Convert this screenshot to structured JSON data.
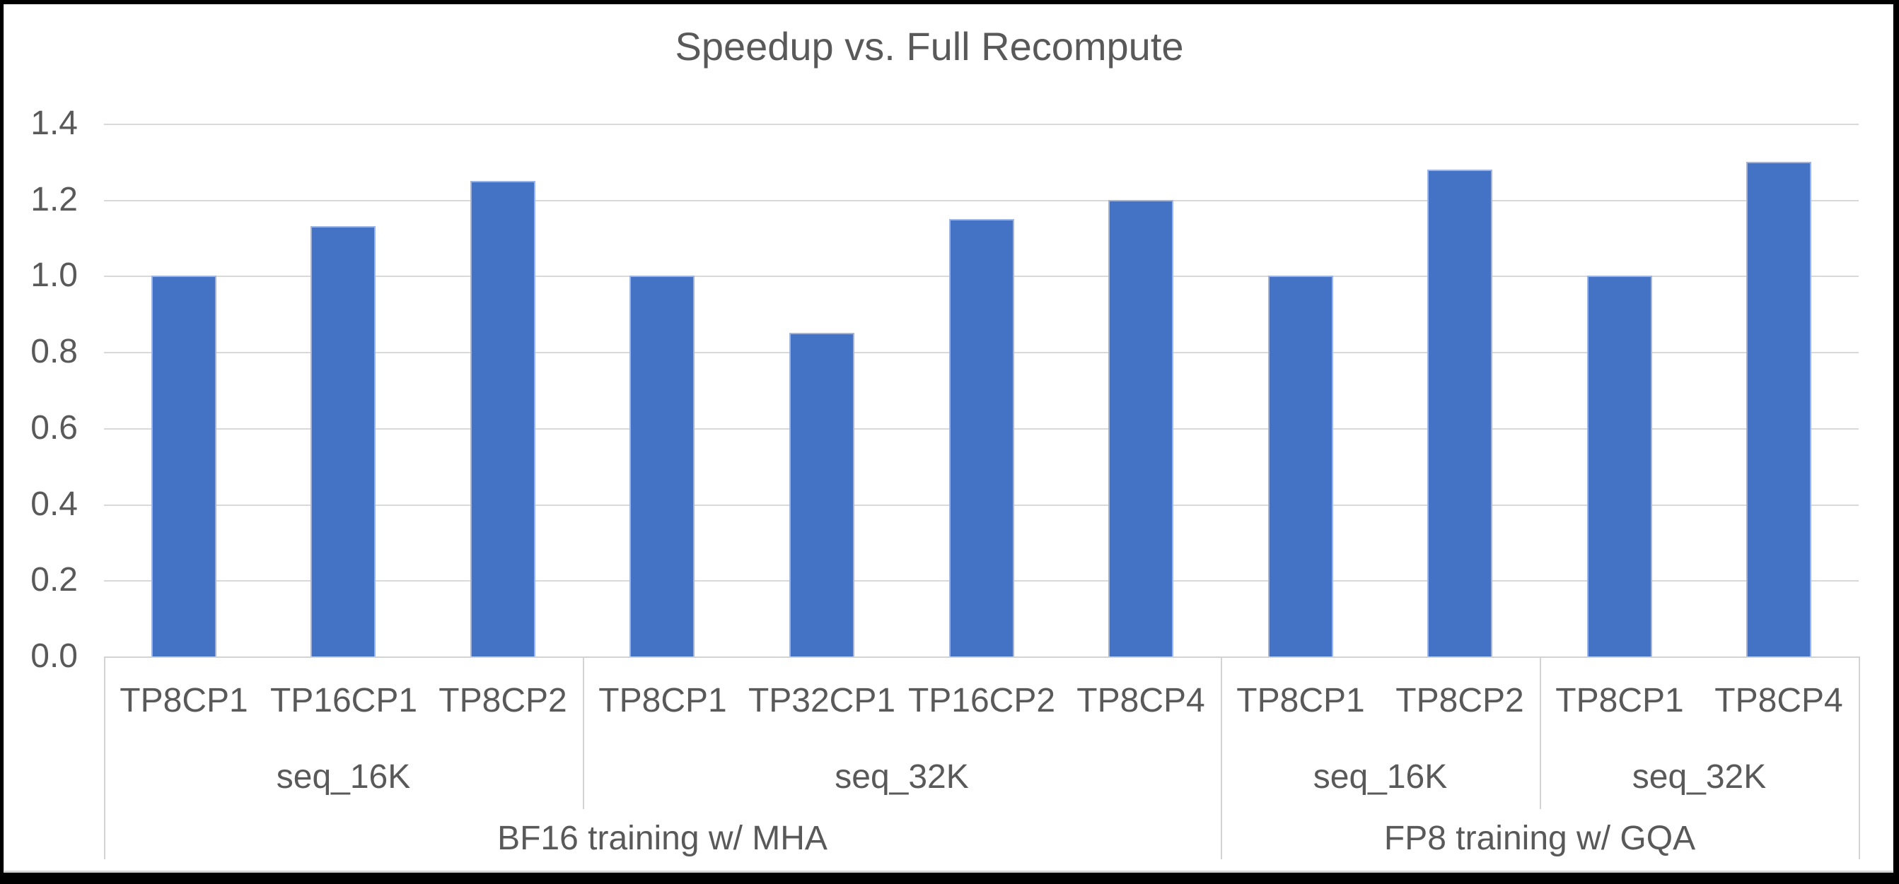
{
  "window": {
    "background": "#ffffff",
    "frame_color": "#000000"
  },
  "chart_data": {
    "type": "bar",
    "title": "Speedup vs. Full Recompute",
    "xlabel": "",
    "ylabel": "",
    "ylim": [
      0.0,
      1.4
    ],
    "ytick_step": 0.2,
    "yticks": [
      "0.0",
      "0.2",
      "0.4",
      "0.6",
      "0.8",
      "1.0",
      "1.2",
      "1.4"
    ],
    "grid": true,
    "legend": "none",
    "bar_color": "#4472C4",
    "bar_edge_color": "#9FB5E0",
    "grid_color": "#D9D9D9",
    "text_color": "#595959",
    "categories": [
      "TP8CP1",
      "TP16CP1",
      "TP8CP2",
      "TP8CP1",
      "TP32CP1",
      "TP16CP2",
      "TP8CP4",
      "TP8CP1",
      "TP8CP2",
      "TP8CP1",
      "TP8CP4"
    ],
    "values": [
      1.0,
      1.13,
      1.25,
      1.0,
      0.85,
      1.15,
      1.2,
      1.0,
      1.28,
      1.0,
      1.3
    ],
    "group_level_seq": [
      {
        "label": "seq_16K",
        "span": 3
      },
      {
        "label": "seq_32K",
        "span": 4
      },
      {
        "label": "seq_16K",
        "span": 2
      },
      {
        "label": "seq_32K",
        "span": 2
      }
    ],
    "group_level_training": [
      {
        "label": "BF16 training w/ MHA",
        "span": 7
      },
      {
        "label": "FP8 training w/ GQA",
        "span": 4
      }
    ]
  }
}
